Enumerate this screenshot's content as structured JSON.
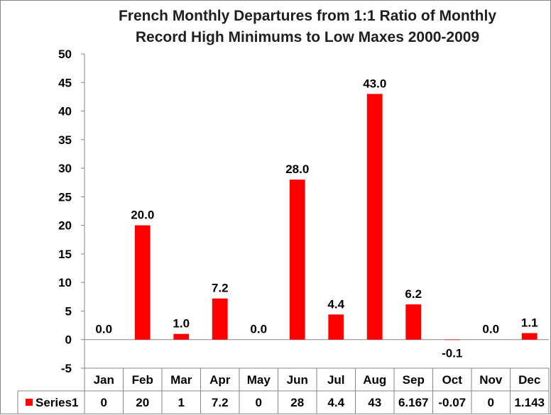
{
  "chart_data": {
    "type": "bar",
    "title": "French Monthly Departures from 1:1 Ratio of Monthly Record High Minimums to Low Maxes 2000-2009",
    "title_lines": [
      "French Monthly Departures from 1:1 Ratio of Monthly",
      "Record High Minimums to Low Maxes 2000-2009"
    ],
    "categories": [
      "Jan",
      "Feb",
      "Mar",
      "Apr",
      "May",
      "Jun",
      "Jul",
      "Aug",
      "Sep",
      "Oct",
      "Nov",
      "Dec"
    ],
    "series": [
      {
        "name": "Series1",
        "color": "#ff0000",
        "values": [
          0,
          20,
          1,
          7.2,
          0,
          28,
          4.4,
          43,
          6.167,
          -0.07,
          0,
          1.143
        ],
        "data_labels": [
          "0.0",
          "20.0",
          "1.0",
          "7.2",
          "0.0",
          "28.0",
          "4.4",
          "43.0",
          "6.2",
          "-0.1",
          "0.0",
          "1.1"
        ],
        "table_values": [
          "0",
          "20",
          "1",
          "7.2",
          "0",
          "28",
          "4.4",
          "43",
          "6.167",
          "-0.07",
          "0",
          "1.143"
        ]
      }
    ],
    "ylim": [
      -5,
      50
    ],
    "y_ticks": [
      -5,
      0,
      5,
      10,
      15,
      20,
      25,
      30,
      35,
      40,
      45,
      50
    ],
    "xlabel": "",
    "ylabel": "",
    "grid": false,
    "legend": "data table",
    "data_table": true
  }
}
